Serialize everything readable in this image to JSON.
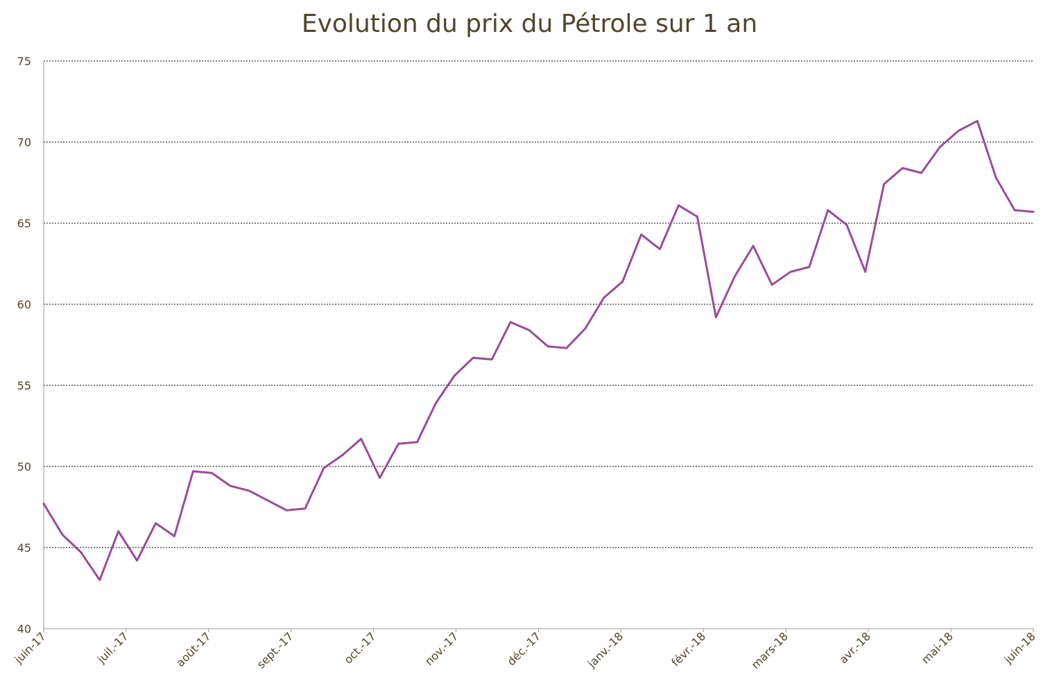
{
  "chart_data": {
    "type": "line",
    "title": "Evolution du prix du Pétrole sur 1 an",
    "xlabel": "",
    "ylabel": "",
    "ylim": [
      40,
      75
    ],
    "yticks": [
      40,
      45,
      50,
      55,
      60,
      65,
      70,
      75
    ],
    "xtick_labels": [
      "juin-17",
      "juil.-17",
      "août-17",
      "sept.-17",
      "oct.-17",
      "nov.-17",
      "déc.-17",
      "janv.-18",
      "févr.-18",
      "mars-18",
      "avr.-18",
      "mai-18",
      "juin-18"
    ],
    "grid": "horizontal dashed",
    "line_color": "#9b4a9b",
    "series": [
      {
        "values": [
          47.7,
          45.8,
          44.7,
          43.0,
          46.0,
          44.2,
          46.5,
          45.7,
          49.7,
          49.6,
          48.8,
          48.5,
          47.9,
          47.3,
          47.4,
          49.9,
          50.7,
          51.7,
          49.3,
          51.4,
          51.5,
          53.9,
          55.6,
          56.7,
          56.6,
          58.9,
          58.4,
          57.4,
          57.3,
          58.5,
          60.4,
          61.4,
          64.3,
          63.4,
          66.1,
          65.4,
          59.2,
          61.7,
          63.6,
          61.2,
          62.0,
          62.3,
          65.8,
          64.9,
          62.0,
          67.4,
          68.4,
          68.1,
          69.7,
          70.7,
          71.3,
          67.8,
          65.8,
          65.7
        ]
      }
    ]
  }
}
